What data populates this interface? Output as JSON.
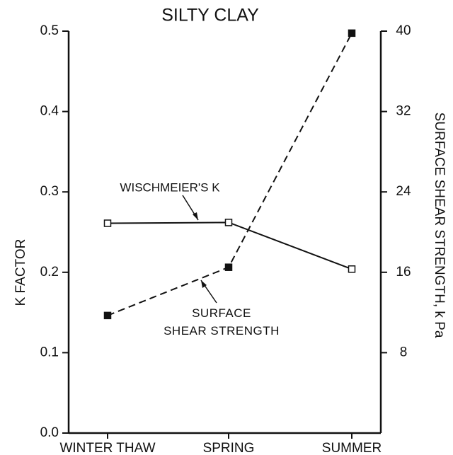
{
  "chart_data": {
    "type": "line",
    "title": "SILTY CLAY",
    "ylabel": "K FACTOR",
    "y2label": "SURFACE SHEAR STRENGTH, k Pa",
    "categories": [
      "WINTER THAW",
      "SPRING",
      "SUMMER"
    ],
    "series": [
      {
        "name": "WISCHMEIER'S K",
        "color": "#111111",
        "marker": "open-square",
        "dashed": false,
        "values": [
          0.261,
          0.262,
          0.204
        ]
      },
      {
        "name": "SURFACE\nSHEAR STRENGTH",
        "color": "#111111",
        "marker": "filled-square",
        "dashed": true,
        "axis": "y2",
        "values": [
          11.7,
          16.5,
          39.8
        ]
      }
    ],
    "ylim": [
      0,
      0.5
    ],
    "yticks": [
      {
        "value": 0,
        "label": "0.0"
      },
      0.1,
      0.2,
      0.3,
      0.4,
      0.5
    ],
    "y2lim": [
      0,
      40
    ],
    "y2ticks": [
      8,
      16,
      24,
      32,
      40
    ]
  }
}
